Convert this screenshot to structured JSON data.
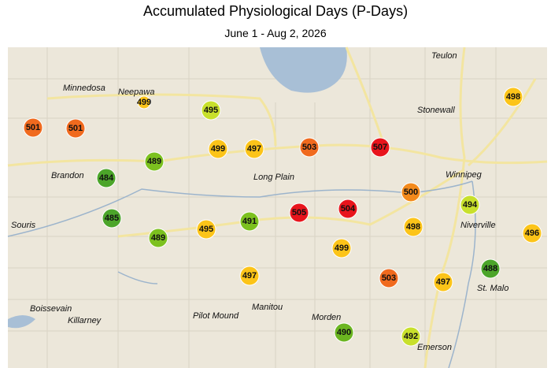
{
  "header": {
    "title": "Accumulated Physiological Days (P-Days)",
    "subtitle": "June 1 - Aug 2, 2026"
  },
  "places": [
    "Teulon",
    "Minnedosa",
    "Neepawa",
    "Stonewall",
    "Brandon",
    "Long Plain",
    "Winnipeg",
    "Souris",
    "Niverville",
    "St. Malo",
    "Boissevain",
    "Killarney",
    "Pilot Mound",
    "Manitou",
    "Morden",
    "Emerson"
  ],
  "stations": [
    {
      "value": 501,
      "color": "#f06a1e"
    },
    {
      "value": 501,
      "color": "#f06a1e"
    },
    {
      "value": 499,
      "color": "#fcc419"
    },
    {
      "value": 495,
      "color": "#c8e02c"
    },
    {
      "value": 499,
      "color": "#fcc419"
    },
    {
      "value": 497,
      "color": "#fcc419"
    },
    {
      "value": 503,
      "color": "#f06a1e"
    },
    {
      "value": 507,
      "color": "#e8141c"
    },
    {
      "value": 498,
      "color": "#fcc419"
    },
    {
      "value": 489,
      "color": "#7cc11f"
    },
    {
      "value": 484,
      "color": "#4ca52a"
    },
    {
      "value": 500,
      "color": "#f38a1c"
    },
    {
      "value": 494,
      "color": "#c8e02c"
    },
    {
      "value": 505,
      "color": "#e8141c"
    },
    {
      "value": 504,
      "color": "#e8141c"
    },
    {
      "value": 485,
      "color": "#4ca52a"
    },
    {
      "value": 491,
      "color": "#7cc11f"
    },
    {
      "value": 495,
      "color": "#fcc419"
    },
    {
      "value": 489,
      "color": "#7cc11f"
    },
    {
      "value": 498,
      "color": "#fcc419"
    },
    {
      "value": 499,
      "color": "#fcc419"
    },
    {
      "value": 496,
      "color": "#fcc419"
    },
    {
      "value": 488,
      "color": "#4ca52a"
    },
    {
      "value": 497,
      "color": "#fcc419"
    },
    {
      "value": 503,
      "color": "#f06a1e"
    },
    {
      "value": 497,
      "color": "#fcc419"
    },
    {
      "value": 490,
      "color": "#6bb520"
    },
    {
      "value": 492,
      "color": "#c8e02c"
    }
  ]
}
